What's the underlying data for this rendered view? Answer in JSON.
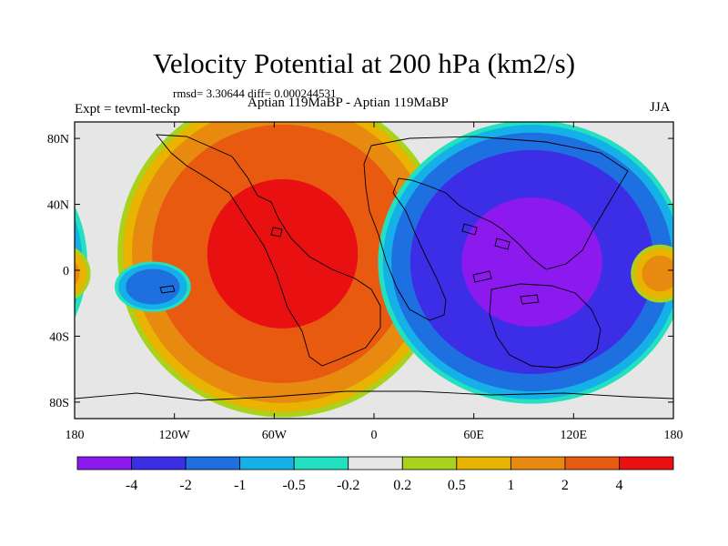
{
  "header": {
    "title": "Velocity Potential at 200 hPa (km2/s)",
    "stats": "rmsd= 3.30644 diff= 0.000244531",
    "left_label": "Expt = tevml-teckp",
    "center_label": "Aptian   119MaBP - Aptian   119MaBP",
    "right_label": "JJA"
  },
  "chart_data": {
    "type": "heatmap",
    "title": "Velocity Potential at 200 hPa (km2/s)",
    "xlabel": "",
    "ylabel": "",
    "xlim": [
      -180,
      180
    ],
    "ylim": [
      -90,
      90
    ],
    "x_ticks": [
      {
        "value": -180,
        "label": "180"
      },
      {
        "value": -120,
        "label": "120W"
      },
      {
        "value": -60,
        "label": "60W"
      },
      {
        "value": 0,
        "label": "0"
      },
      {
        "value": 60,
        "label": "60E"
      },
      {
        "value": 120,
        "label": "120E"
      },
      {
        "value": 180,
        "label": "180"
      }
    ],
    "y_ticks": [
      {
        "value": 80,
        "label": "80N"
      },
      {
        "value": 40,
        "label": "40N"
      },
      {
        "value": 0,
        "label": "0"
      },
      {
        "value": -40,
        "label": "40S"
      },
      {
        "value": -80,
        "label": "80S"
      }
    ],
    "colorbar": {
      "colors": [
        "#8c1aee",
        "#3c2de6",
        "#1e6fe0",
        "#15b0e8",
        "#22e0c0",
        "#e6e6e6",
        "#a9d21c",
        "#e8b400",
        "#e88a10",
        "#e85a10",
        "#e81010"
      ],
      "levels": [
        -4,
        -2,
        -1,
        -0.5,
        -0.2,
        0.2,
        0.5,
        1,
        2,
        4
      ],
      "level_labels": [
        "-4",
        "-2",
        "-1",
        "-0.5",
        "-0.2",
        "0.2",
        "0.5",
        "1",
        "2",
        "4"
      ]
    },
    "field_features": [
      {
        "name": "positive-center-west-hemisphere",
        "lon": -55,
        "lat": 10,
        "value": 5,
        "lon_radius": 75,
        "lat_radius": 75
      },
      {
        "name": "negative-center-east-hemisphere",
        "lon": 95,
        "lat": 5,
        "value": -5,
        "lon_radius": 70,
        "lat_radius": 65
      },
      {
        "name": "local-negative-east-pacific",
        "lon": -133,
        "lat": -10,
        "value": -1.8,
        "lon_radius": 18,
        "lat_radius": 12
      },
      {
        "name": "local-positive-west-pacific",
        "lon": 172,
        "lat": -2,
        "value": 1.5,
        "lon_radius": 14,
        "lat_radius": 14
      }
    ]
  }
}
